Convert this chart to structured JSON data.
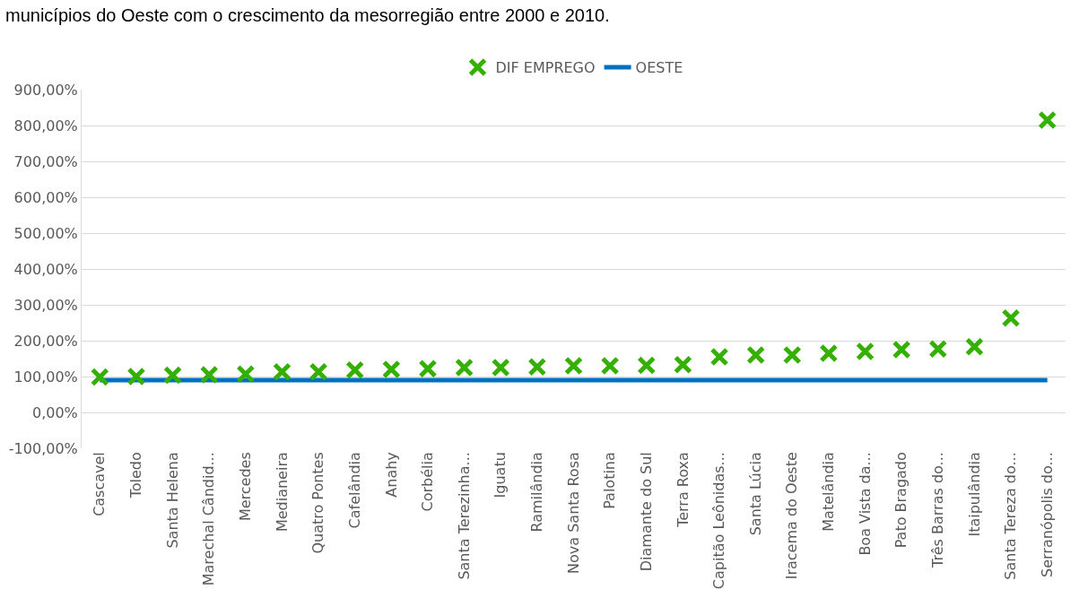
{
  "chart_data": {
    "type": "scatter",
    "title": "municípios do Oeste com o crescimento da mesorregião entre 2000 e 2010.",
    "categories": [
      "Cascavel",
      "Toledo",
      "Santa Helena",
      "Marechal Cândid...",
      "Mercedes",
      "Medianeira",
      "Quatro Pontes",
      "Cafelândia",
      "Anahy",
      "Corbélia",
      "Santa Terezinha...",
      "Iguatu",
      "Ramilândia",
      "Nova Santa Rosa",
      "Palotina",
      "Diamante do Sul",
      "Terra Roxa",
      "Capitão Leônidas...",
      "Santa Lúcia",
      "Iracema do Oeste",
      "Matelândia",
      "Boa Vista da...",
      "Pato Bragado",
      "Três Barras do...",
      "Itaipulândia",
      "Santa Tereza do...",
      "Serranópolis do..."
    ],
    "series": [
      {
        "name": "DIF EMPREGO",
        "marker": "cross",
        "color": "#33b000",
        "values": [
          99,
          100,
          104,
          105,
          107,
          113,
          113,
          118,
          120,
          122,
          125,
          125,
          127,
          130,
          130,
          131,
          133,
          155,
          160,
          160,
          165,
          170,
          175,
          177,
          183,
          263,
          815
        ]
      },
      {
        "name": "OESTE",
        "type": "line",
        "marker": "none",
        "color": "#0070c0",
        "values": [
          90,
          90,
          90,
          90,
          90,
          90,
          90,
          90,
          90,
          90,
          90,
          90,
          90,
          90,
          90,
          90,
          90,
          90,
          90,
          90,
          90,
          90,
          90,
          90,
          90,
          90,
          90
        ]
      }
    ],
    "ylim": [
      -100,
      900
    ],
    "yticks": [
      {
        "value": -100,
        "label": "-100,00%"
      },
      {
        "value": 0,
        "label": "0,00%"
      },
      {
        "value": 100,
        "label": "100,00%"
      },
      {
        "value": 200,
        "label": "200,00%"
      },
      {
        "value": 300,
        "label": "300,00%"
      },
      {
        "value": 400,
        "label": "400,00%"
      },
      {
        "value": 500,
        "label": "500,00%"
      },
      {
        "value": 600,
        "label": "600,00%"
      },
      {
        "value": 700,
        "label": "700,00%"
      },
      {
        "value": 800,
        "label": "800,00%"
      },
      {
        "value": 900,
        "label": "900,00%"
      }
    ],
    "grid": "y",
    "legend": "top"
  }
}
